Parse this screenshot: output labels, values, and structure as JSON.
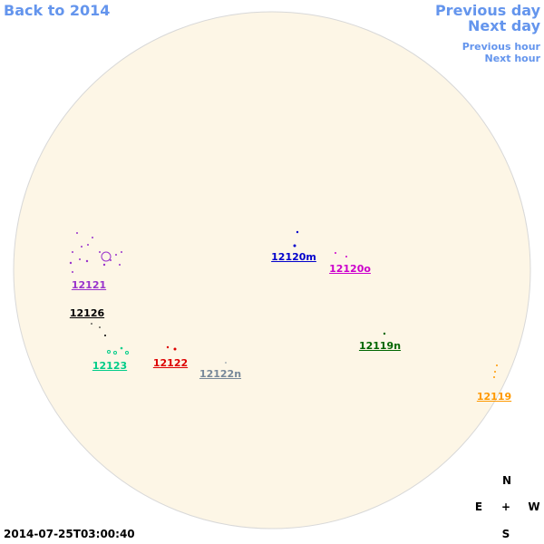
{
  "navigation": {
    "back": "Back to 2014",
    "previous_day": "Previous day",
    "next_day": "Next day",
    "previous_hour": "Previous hour",
    "next_hour": "Next hour"
  },
  "regions": [
    {
      "label": "12121"
    },
    {
      "label": "12120m"
    },
    {
      "label": "12120o"
    },
    {
      "label": "12126"
    },
    {
      "label": "12123"
    },
    {
      "label": "12122"
    },
    {
      "label": "12122n"
    },
    {
      "label": "12119n"
    },
    {
      "label": "12119"
    }
  ],
  "timestamp": "2014-07-25T03:00:40",
  "compass": {
    "north": "N",
    "east": "E",
    "center": "+",
    "west": "W",
    "south": "S"
  }
}
